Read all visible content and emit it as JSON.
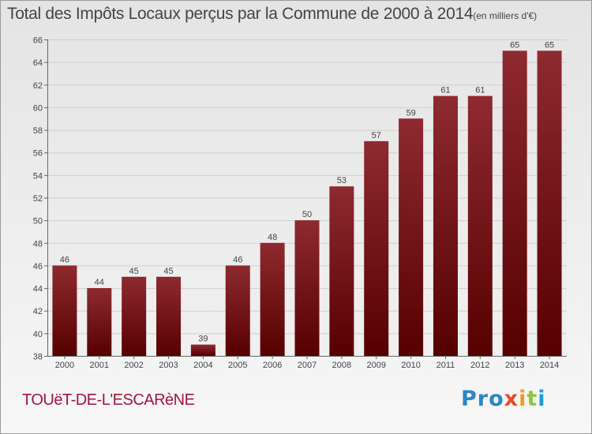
{
  "header": {
    "title": "Total des Impôts Locaux perçus par la Commune de 2000 à 2014",
    "unit": "(en milliers d'€)"
  },
  "footer": {
    "commune": "TOUëT-DE-L'ESCARèNE",
    "logo_parts": [
      "Pro",
      "x",
      "i",
      "t",
      "i"
    ]
  },
  "chart_data": {
    "type": "bar",
    "title": "Total des Impôts Locaux perçus par la Commune de 2000 à 2014",
    "unit": "(en milliers d'€)",
    "categories": [
      "2000",
      "2001",
      "2002",
      "2003",
      "2004",
      "2005",
      "2006",
      "2007",
      "2008",
      "2009",
      "2010",
      "2011",
      "2012",
      "2013",
      "2014"
    ],
    "values": [
      46,
      44,
      45,
      45,
      39,
      46,
      48,
      50,
      53,
      57,
      59,
      61,
      61,
      65,
      65
    ],
    "ylim": [
      38,
      66
    ],
    "yticks": [
      38,
      40,
      42,
      44,
      46,
      48,
      50,
      52,
      54,
      56,
      58,
      60,
      62,
      64,
      66
    ],
    "grid": true,
    "bar_color": "#7a1520",
    "xlabel": "",
    "ylabel": ""
  }
}
